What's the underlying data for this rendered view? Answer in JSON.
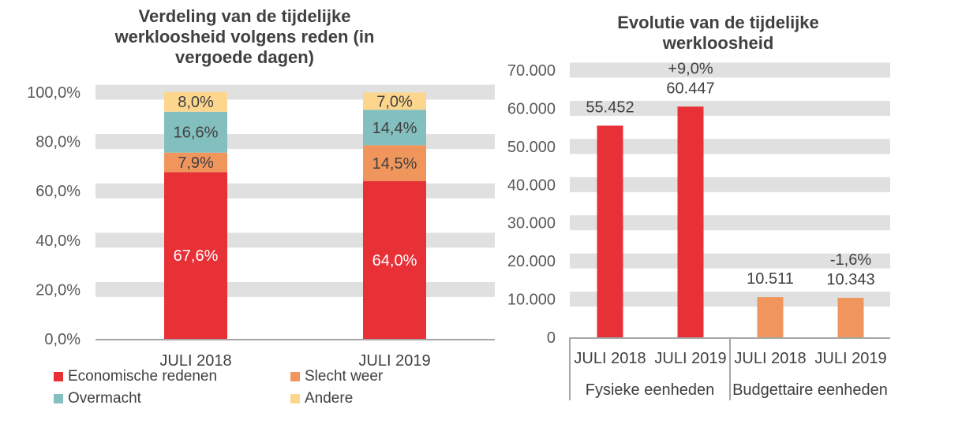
{
  "chart_data": [
    {
      "type": "bar",
      "stacked": true,
      "title": "Verdeling van de tijdelijke werkloosheid volgens reden (in vergoede dagen)",
      "categories": [
        "JULI 2018",
        "JULI 2019"
      ],
      "series": [
        {
          "name": "Economische redenen",
          "values": [
            67.6,
            64.0
          ],
          "labels": [
            "67,6%",
            "64,0%"
          ],
          "color": "#E83037",
          "label_color": "#ffffff"
        },
        {
          "name": "Slecht weer",
          "values": [
            7.9,
            14.5
          ],
          "labels": [
            "7,9%",
            "14,5%"
          ],
          "color": "#F0965D",
          "label_color": "#404040"
        },
        {
          "name": "Overmacht",
          "values": [
            16.6,
            14.4
          ],
          "labels": [
            "16,6%",
            "14,4%"
          ],
          "color": "#83BFBE",
          "label_color": "#404040"
        },
        {
          "name": "Andere",
          "values": [
            8.0,
            7.0
          ],
          "labels": [
            "8,0%",
            "7,0%"
          ],
          "color": "#FDD68E",
          "label_color": "#404040"
        }
      ],
      "ylim": [
        0,
        100
      ],
      "yticks": [
        0,
        20,
        40,
        60,
        80,
        100
      ],
      "ytick_labels": [
        "0,0%",
        "20,0%",
        "40,0%",
        "60,0%",
        "80,0%",
        "100,0%"
      ],
      "grid": true,
      "legend": "bottom"
    },
    {
      "type": "bar",
      "title": "Evolutie van de tijdelijke werkloosheid",
      "groups": [
        "Fysieke eenheden",
        "Budgettaire eenheden"
      ],
      "categories": [
        "JULI 2018",
        "JULI 2019",
        "JULI 2018",
        "JULI 2019"
      ],
      "values": [
        55452,
        60447,
        10511,
        10343
      ],
      "value_labels": [
        "55.452",
        "60.447",
        "10.511",
        "10.343"
      ],
      "change_labels": [
        "",
        "+9,0%",
        "",
        "-1,6%"
      ],
      "colors": [
        "#E83037",
        "#E83037",
        "#F0965D",
        "#F0965D"
      ],
      "ylim": [
        0,
        70000
      ],
      "yticks": [
        0,
        10000,
        20000,
        30000,
        40000,
        50000,
        60000,
        70000
      ],
      "ytick_labels": [
        "0",
        "10.000",
        "20.000",
        "30.000",
        "40.000",
        "50.000",
        "60.000",
        "70.000"
      ],
      "grid": true
    }
  ]
}
